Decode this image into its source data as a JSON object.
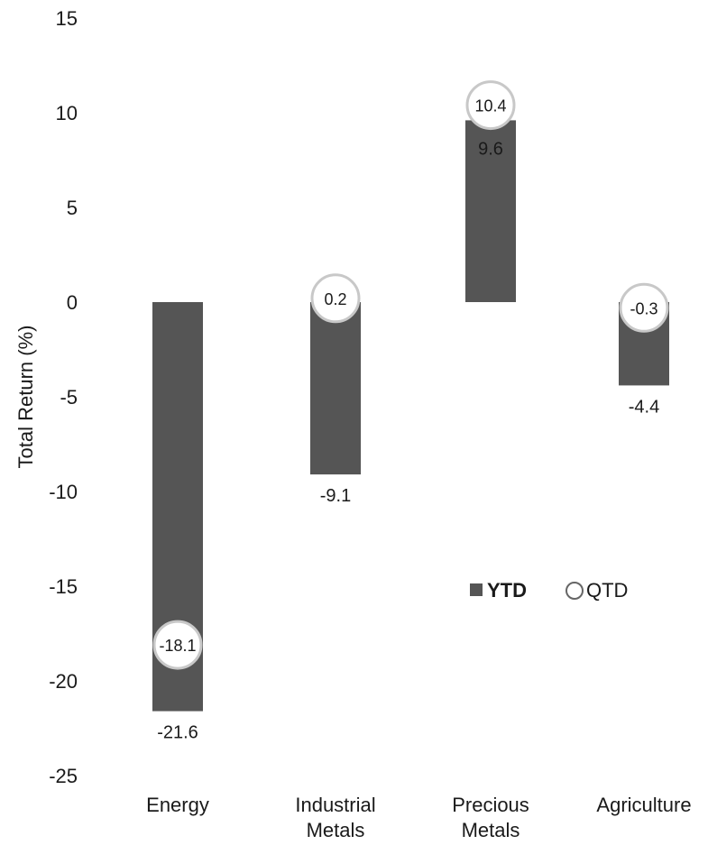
{
  "chart_data": {
    "type": "bar",
    "title": "",
    "xlabel": "",
    "ylabel": "Total Return (%)",
    "ylim": [
      -25,
      15
    ],
    "yticks": [
      15,
      10,
      5,
      0,
      -5,
      -10,
      -15,
      -20,
      -25
    ],
    "grid": false,
    "legend_position": "inside-right",
    "categories": [
      [
        "Energy"
      ],
      [
        "Industrial",
        "Metals"
      ],
      [
        "Precious",
        "Metals"
      ],
      [
        "Agriculture"
      ]
    ],
    "series": [
      {
        "name": "YTD",
        "kind": "bar",
        "color": "#555555",
        "values": [
          -21.6,
          -9.1,
          9.6,
          -4.4
        ]
      },
      {
        "name": "QTD",
        "kind": "circle-marker",
        "color": "#ffffff",
        "values": [
          -18.1,
          0.2,
          10.4,
          -0.3
        ]
      }
    ]
  }
}
